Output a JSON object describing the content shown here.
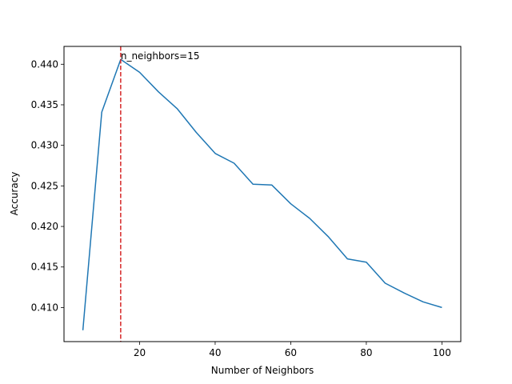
{
  "chart_data": {
    "type": "line",
    "xlabel": "Number of Neighbors",
    "ylabel": "Accuracy",
    "xlim": [
      0,
      105
    ],
    "ylim": [
      0.4058,
      0.4422
    ],
    "xticks": [
      20,
      40,
      60,
      80,
      100
    ],
    "yticks": [
      0.41,
      0.415,
      0.42,
      0.425,
      0.43,
      0.435,
      0.44
    ],
    "grid": false,
    "series": [
      {
        "color": "#1f77b4",
        "x": [
          5,
          10,
          15,
          20,
          25,
          30,
          35,
          40,
          45,
          50,
          55,
          60,
          65,
          70,
          75,
          80,
          85,
          90,
          95,
          100
        ],
        "y": [
          0.4072,
          0.4341,
          0.4406,
          0.439,
          0.4366,
          0.4345,
          0.4316,
          0.429,
          0.4278,
          0.4252,
          0.4251,
          0.4228,
          0.421,
          0.4187,
          0.416,
          0.4156,
          0.413,
          0.4118,
          0.4107,
          0.41
        ]
      }
    ],
    "vline": {
      "x": 15,
      "color": "#d62728",
      "style": "dashed"
    },
    "annotation": {
      "text": "n_neighbors=15",
      "x": 15,
      "y": 0.4406
    }
  }
}
